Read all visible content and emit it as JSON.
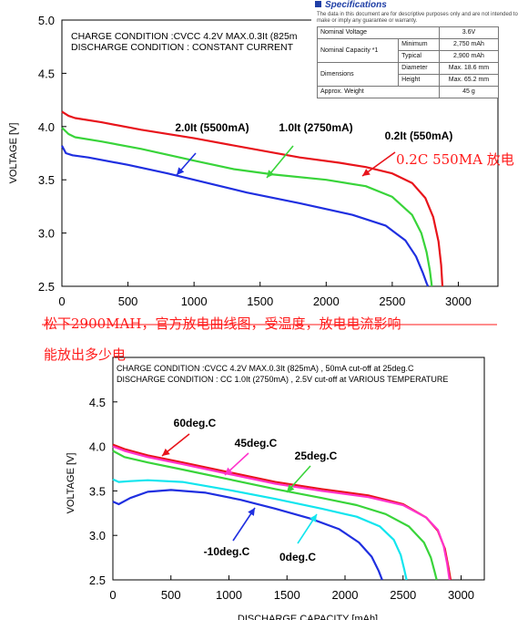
{
  "chart_data": [
    {
      "type": "line",
      "title": "",
      "header_lines": [
        "CHARGE CONDITION :CVCC 4.2V MAX.0.3It (825m",
        "DISCHARGE CONDITION : CONSTANT CURRENT"
      ],
      "xlabel": "",
      "ylabel": "VOLTAGE  [V]",
      "xlim": [
        0,
        3300
      ],
      "ylim": [
        2.5,
        5.0
      ],
      "x_ticks": [
        0,
        500,
        1000,
        1500,
        2000,
        2500,
        3000
      ],
      "y_ticks": [
        "2.5",
        "3.0",
        "3.5",
        "4.0",
        "4.5",
        "5.0"
      ],
      "grid": false,
      "series": [
        {
          "name": "0.2It (550mA)",
          "color": "#e8141b",
          "x": [
            0,
            50,
            100,
            300,
            600,
            1000,
            1400,
            1800,
            2100,
            2300,
            2500,
            2650,
            2750,
            2810,
            2850,
            2870,
            2880
          ],
          "y": [
            4.14,
            4.1,
            4.08,
            4.04,
            3.97,
            3.89,
            3.8,
            3.71,
            3.66,
            3.62,
            3.56,
            3.47,
            3.33,
            3.15,
            2.92,
            2.7,
            2.5
          ]
        },
        {
          "name": "1.0It (2750mA)",
          "color": "#39d43a",
          "x": [
            0,
            50,
            100,
            300,
            600,
            1000,
            1300,
            1600,
            2000,
            2300,
            2500,
            2650,
            2720,
            2760,
            2785,
            2800
          ],
          "y": [
            3.99,
            3.93,
            3.9,
            3.86,
            3.79,
            3.68,
            3.6,
            3.55,
            3.5,
            3.44,
            3.34,
            3.17,
            3.0,
            2.82,
            2.65,
            2.5
          ]
        },
        {
          "name": "2.0It (5500mA)",
          "color": "#1f2fe0",
          "x": [
            0,
            30,
            80,
            200,
            500,
            800,
            1000,
            1400,
            1800,
            2200,
            2450,
            2600,
            2680,
            2730,
            2760,
            2770
          ],
          "y": [
            3.82,
            3.75,
            3.73,
            3.71,
            3.64,
            3.56,
            3.5,
            3.38,
            3.28,
            3.17,
            3.07,
            2.93,
            2.78,
            2.63,
            2.53,
            2.5
          ]
        }
      ],
      "annotations": [
        "2.0It (5500mA)",
        "1.0It (2750mA)",
        "0.2It (550mA)"
      ]
    },
    {
      "type": "line",
      "title": "",
      "header_lines": [
        "CHARGE CONDITION :CVCC 4.2V MAX.0.3It (825mA) , 50mA cut-off at  25deg.C",
        "DISCHARGE CONDITION : CC 1.0It (2750mA) , 2.5V cut-off at  VARIOUS TEMPERATURE"
      ],
      "xlabel": "DISCHARGE CAPACITY  [mAh]",
      "ylabel": "VOLTAGE  [V]",
      "xlim": [
        0,
        3200
      ],
      "ylim": [
        2.5,
        5.0
      ],
      "x_ticks": [
        0,
        500,
        1000,
        1500,
        2000,
        2500,
        3000
      ],
      "y_ticks": [
        "2.5",
        "3.0",
        "3.5",
        "4.0",
        "4.5"
      ],
      "grid": false,
      "series": [
        {
          "name": "60deg.C",
          "color": "#e8141b",
          "x": [
            0,
            100,
            300,
            600,
            1000,
            1400,
            1800,
            2200,
            2500,
            2700,
            2800,
            2860,
            2890,
            2910
          ],
          "y": [
            4.02,
            3.97,
            3.9,
            3.82,
            3.71,
            3.6,
            3.52,
            3.45,
            3.35,
            3.2,
            3.05,
            2.85,
            2.65,
            2.5
          ]
        },
        {
          "name": "45deg.C",
          "color": "#ff33cc",
          "x": [
            0,
            100,
            300,
            600,
            1000,
            1400,
            1800,
            2200,
            2500,
            2700,
            2800,
            2850,
            2880,
            2900
          ],
          "y": [
            4.0,
            3.95,
            3.88,
            3.8,
            3.69,
            3.58,
            3.5,
            3.43,
            3.34,
            3.2,
            3.06,
            2.88,
            2.68,
            2.5
          ]
        },
        {
          "name": "25deg.C",
          "color": "#39d43a",
          "x": [
            0,
            100,
            300,
            600,
            1000,
            1400,
            1800,
            2100,
            2350,
            2550,
            2680,
            2740,
            2770,
            2790
          ],
          "y": [
            3.95,
            3.88,
            3.82,
            3.74,
            3.63,
            3.52,
            3.42,
            3.34,
            3.24,
            3.1,
            2.92,
            2.75,
            2.6,
            2.5
          ]
        },
        {
          "name": "0deg.C",
          "color": "#12e5ee",
          "x": [
            0,
            50,
            150,
            300,
            600,
            1000,
            1400,
            1800,
            2100,
            2300,
            2420,
            2480,
            2510,
            2530
          ],
          "y": [
            3.63,
            3.6,
            3.61,
            3.62,
            3.6,
            3.51,
            3.41,
            3.3,
            3.21,
            3.1,
            2.95,
            2.78,
            2.62,
            2.5
          ]
        },
        {
          "name": "-10deg.C",
          "color": "#1f2fe0",
          "x": [
            0,
            50,
            150,
            300,
            500,
            800,
            1100,
            1400,
            1700,
            1950,
            2120,
            2230,
            2290,
            2320
          ],
          "y": [
            3.38,
            3.35,
            3.42,
            3.49,
            3.51,
            3.48,
            3.4,
            3.3,
            3.19,
            3.07,
            2.92,
            2.76,
            2.6,
            2.5
          ]
        }
      ],
      "annotations": [
        "60deg.C",
        "45deg.C",
        "25deg.C",
        "-10deg.C",
        "0deg.C"
      ]
    }
  ],
  "specifications": {
    "title": "Specifications",
    "note": "The data in this document are for descriptive purposes only and are not intended to make or imply any guarantee or warranty.",
    "nominal_voltage_label": "Nominal Voltage",
    "nominal_voltage": "3.6V",
    "nominal_capacity_label": "Nominal Capacity *1",
    "minimum_label": "Minimum",
    "minimum": "2,750 mAh",
    "typical_label": "Typical",
    "typical": "2,900 mAh",
    "dimensions_label": "Dimensions",
    "diameter_label": "Diameter",
    "diameter": "Max. 18.6 mm",
    "height_label": "Height",
    "height": "Max. 65.2 mm",
    "weight_label": "Approx. Weight",
    "weight": "45 g"
  },
  "notes": {
    "discharge_note": "0.2C 550MA 放电",
    "line1": "松下2900MAH，官方放电曲线图，受温度，放电电流影响",
    "line2": "能放出多少电"
  },
  "colors": {
    "red_text": "#ff1a1a"
  }
}
